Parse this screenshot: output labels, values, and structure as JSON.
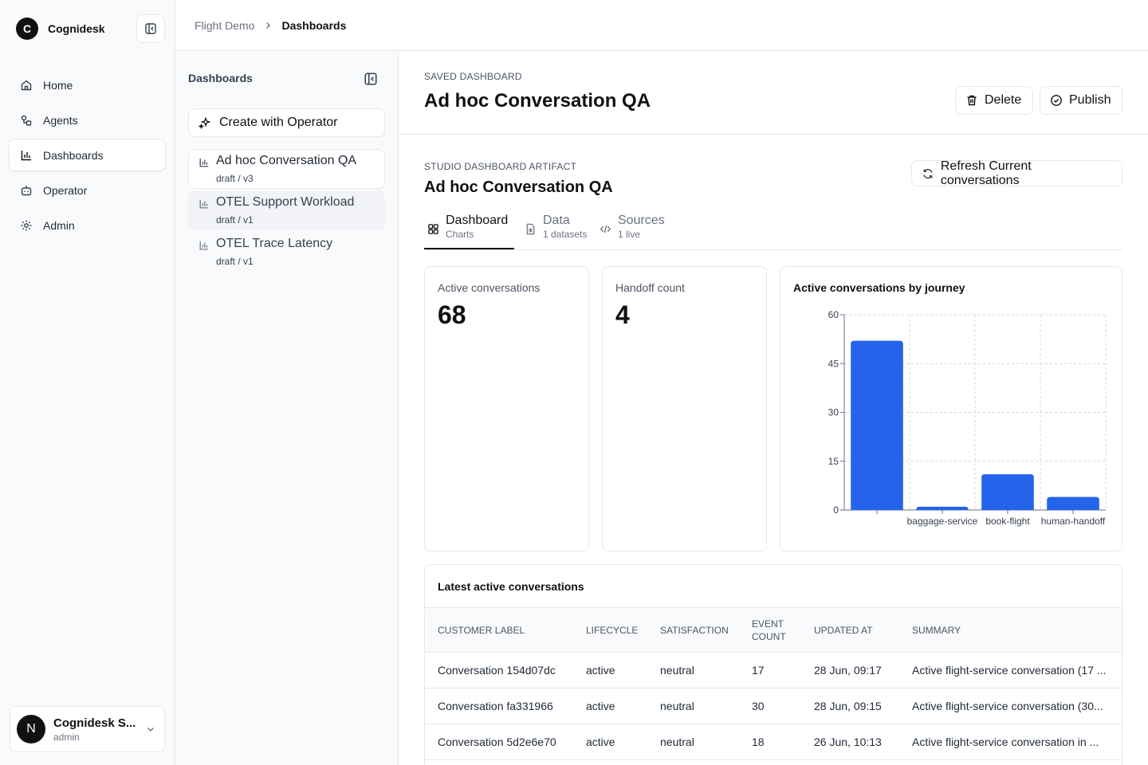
{
  "app": {
    "brand_initial": "C",
    "brand_name": "Cognidesk",
    "nav": [
      {
        "label": "Home",
        "icon": "home-icon"
      },
      {
        "label": "Agents",
        "icon": "agents-icon"
      },
      {
        "label": "Dashboards",
        "icon": "bar-chart-icon",
        "active": true
      },
      {
        "label": "Operator",
        "icon": "bot-icon"
      },
      {
        "label": "Admin",
        "icon": "gear-icon"
      }
    ],
    "user": {
      "initial": "N",
      "name": "Cognidesk S...",
      "role": "admin"
    }
  },
  "breadcrumb": {
    "parent": "Flight Demo",
    "current": "Dashboards"
  },
  "panel": {
    "title": "Dashboards",
    "create_label": "Create with Operator",
    "items": [
      {
        "name": "Ad hoc Conversation QA",
        "version": "draft / v3"
      },
      {
        "name": "OTEL Support Workload",
        "version": "draft / v1"
      },
      {
        "name": "OTEL Trace Latency",
        "version": "draft / v1"
      }
    ]
  },
  "header": {
    "eyebrow": "SAVED DASHBOARD",
    "title": "Ad hoc Conversation QA",
    "delete_label": "Delete",
    "publish_label": "Publish"
  },
  "artifact": {
    "eyebrow": "STUDIO DASHBOARD ARTIFACT",
    "title": "Ad hoc Conversation QA",
    "refresh_label": "Refresh Current conversations"
  },
  "tabs": [
    {
      "label": "Dashboard",
      "sub": "Charts"
    },
    {
      "label": "Data",
      "sub": "1 datasets"
    },
    {
      "label": "Sources",
      "sub": "1 live"
    }
  ],
  "kpis": [
    {
      "label": "Active conversations",
      "value": "68"
    },
    {
      "label": "Handoff count",
      "value": "4"
    }
  ],
  "chart_data": {
    "type": "bar",
    "title": "Active conversations by journey",
    "categories": [
      "",
      "baggage-service",
      "book-flight",
      "human-handoff"
    ],
    "values": [
      52,
      1,
      11,
      4
    ],
    "yticks": [
      "0",
      "15",
      "30",
      "45",
      "60"
    ],
    "ylim": [
      0,
      60
    ],
    "grid": true,
    "color": "#2563eb"
  },
  "table": {
    "title": "Latest active conversations",
    "headers": [
      "CUSTOMER LABEL",
      "LIFECYCLE",
      "SATISFACTION",
      "EVENT COUNT",
      "UPDATED AT",
      "SUMMARY"
    ],
    "rows": [
      [
        "Conversation 154d07dc",
        "active",
        "neutral",
        "17",
        "28 Jun, 09:17",
        "Active flight-service conversation (17 ..."
      ],
      [
        "Conversation fa331966",
        "active",
        "neutral",
        "30",
        "28 Jun, 09:15",
        "Active flight-service conversation (30..."
      ],
      [
        "Conversation 5d2e6e70",
        "active",
        "neutral",
        "18",
        "26 Jun, 10:13",
        "Active flight-service conversation in ..."
      ]
    ]
  }
}
